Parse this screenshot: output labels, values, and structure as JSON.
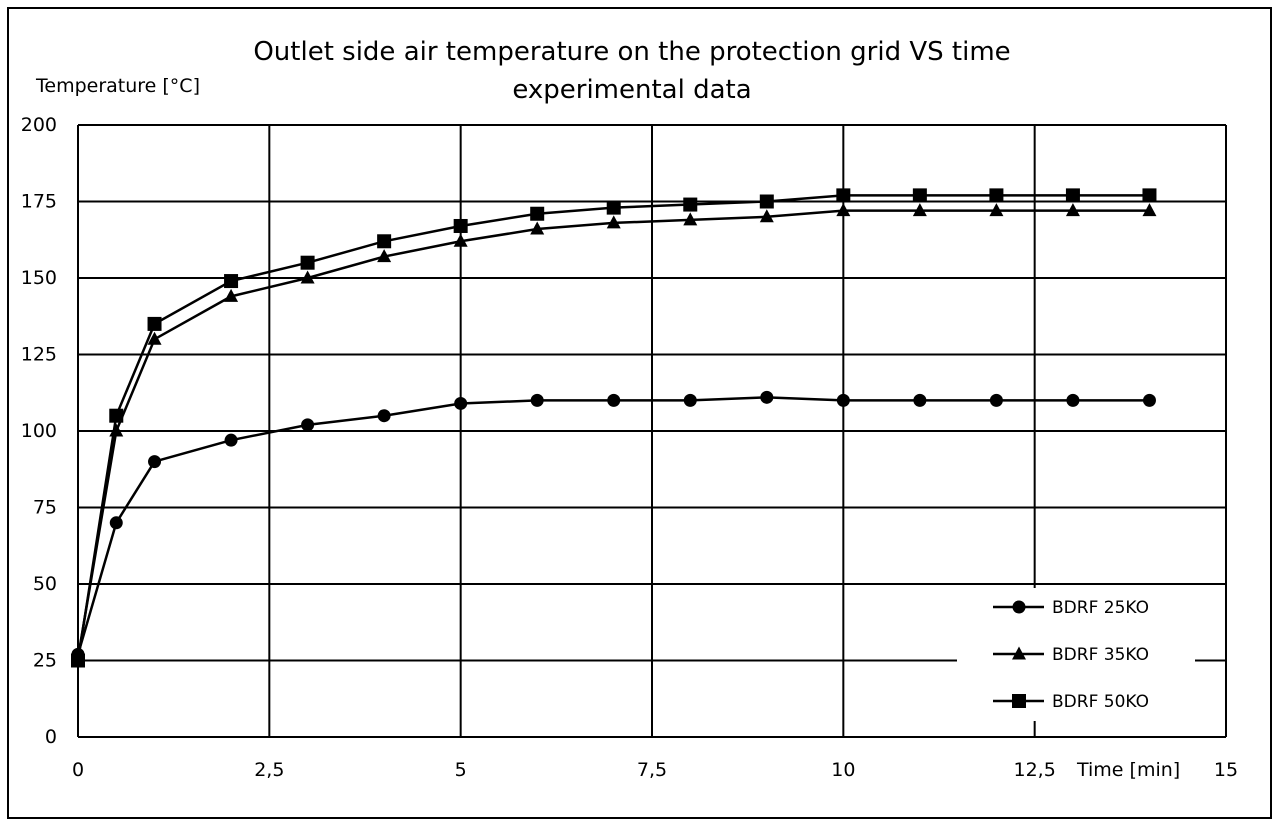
{
  "chart_data": {
    "type": "line",
    "title_lines": [
      "Outlet side air temperature on the protection grid VS time",
      "experimental data"
    ],
    "ylabel": "Temperature [°C]",
    "xlabel": "Time [min]",
    "xlim": [
      0,
      15
    ],
    "ylim": [
      0,
      200
    ],
    "x_ticks": [
      "0",
      "2,5",
      "5",
      "7,5",
      "10",
      "12,5",
      "15"
    ],
    "y_ticks": [
      "0",
      "25",
      "50",
      "75",
      "100",
      "125",
      "150",
      "175",
      "200"
    ],
    "grid": true,
    "legend_position": "bottom-right",
    "x": [
      0,
      0.5,
      1,
      2,
      3,
      4,
      5,
      6,
      7,
      8,
      9,
      10,
      11,
      12,
      13,
      14
    ],
    "series": [
      {
        "name": "BDRF 25KO",
        "marker": "circle",
        "values": [
          27,
          70,
          90,
          97,
          102,
          105,
          109,
          110,
          110,
          110,
          111,
          110,
          110,
          110,
          110,
          110
        ]
      },
      {
        "name": "BDRF 35KO",
        "marker": "triangle",
        "values": [
          26,
          100,
          130,
          144,
          150,
          157,
          162,
          166,
          168,
          169,
          170,
          172,
          172,
          172,
          172,
          172
        ]
      },
      {
        "name": "BDRF 50KO",
        "marker": "square",
        "values": [
          25,
          105,
          135,
          149,
          155,
          162,
          167,
          171,
          173,
          174,
          175,
          177,
          177,
          177,
          177,
          177
        ]
      }
    ],
    "colors": {
      "line": "#000000",
      "grid": "#000000",
      "background": "#ffffff"
    }
  }
}
